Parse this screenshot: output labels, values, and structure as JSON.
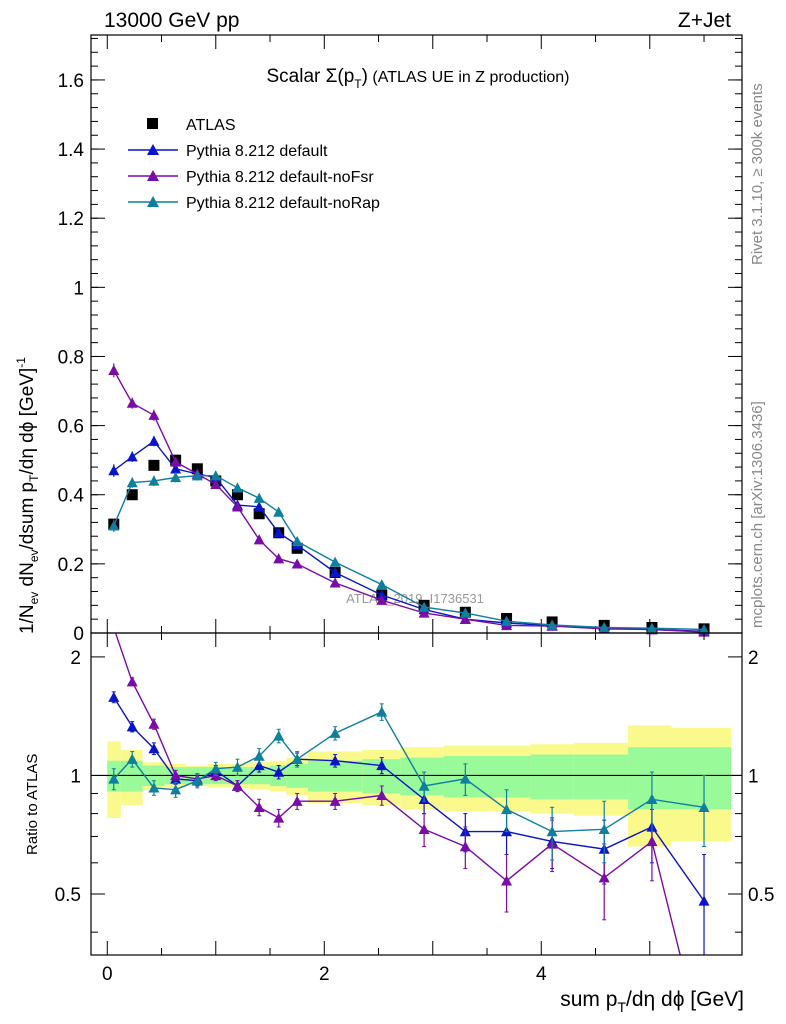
{
  "header": {
    "left": "13000 GeV pp",
    "right": "Z+Jet"
  },
  "side_labels": {
    "rivet": "Rivet 3.1.10, ≥ 300k events",
    "mcplots": "mcplots.cern.ch [arXiv:1306.3436]"
  },
  "watermark": "ATLAS_2019_I1736531",
  "colors": {
    "atlas": "#000000",
    "default": "#0a14c8",
    "noFsr": "#7a0ca8",
    "noRap": "#0f7f9e",
    "band_inner": "#99fa99",
    "band_outer": "#fafa8c"
  },
  "chart_data": [
    {
      "type": "scatter",
      "panel": "main",
      "title_prefix": "Scalar ",
      "title_sigma": "Σ(p",
      "title_sub": "T",
      "title_close": ")",
      "title_suffix": " (ATLAS UE in Z production)",
      "xlabel": "sum p_T/dη dϕ [GeV]",
      "ylabel": "1/N_ev dN_ev/dsum p_T/dη dϕ [GeV]^-1",
      "xlim": [
        -0.15,
        5.85
      ],
      "ylim": [
        0,
        1.73
      ],
      "yticks": [
        "0",
        "0.2",
        "0.4",
        "0.6",
        "0.8",
        "1",
        "1.2",
        "1.4",
        "1.6"
      ],
      "xticks": [
        "0",
        "2",
        "4"
      ],
      "legend": [
        "ATLAS",
        "Pythia 8.212 default",
        "Pythia 8.212 default-noFsr",
        "Pythia 8.212 default-noRap"
      ],
      "bins": [
        [
          0,
          0.125
        ],
        [
          0.125,
          0.325
        ],
        [
          0.325,
          0.525
        ],
        [
          0.525,
          0.725
        ],
        [
          0.725,
          0.925
        ],
        [
          0.925,
          1.1
        ],
        [
          1.1,
          1.3
        ],
        [
          1.3,
          1.5
        ],
        [
          1.5,
          1.65
        ],
        [
          1.65,
          1.85
        ],
        [
          1.85,
          2.35
        ],
        [
          2.35,
          2.7
        ],
        [
          2.7,
          3.1
        ],
        [
          3.1,
          3.5
        ],
        [
          3.5,
          3.9
        ],
        [
          3.9,
          4.3
        ],
        [
          4.3,
          4.8
        ],
        [
          4.8,
          5.2
        ],
        [
          5.2,
          5.75
        ]
      ],
      "x": [
        0.06,
        0.23,
        0.43,
        0.63,
        0.83,
        1.0,
        1.2,
        1.4,
        1.58,
        1.75,
        2.1,
        2.53,
        2.92,
        3.3,
        3.68,
        4.1,
        4.58,
        5.02,
        5.5
      ],
      "series": [
        {
          "name": "ATLAS",
          "key": "atlas",
          "values": [
            0.315,
            0.4,
            0.485,
            0.5,
            0.475,
            0.44,
            0.4,
            0.345,
            0.29,
            0.245,
            0.175,
            0.11,
            0.08,
            0.06,
            0.042,
            0.032,
            0.022,
            0.016,
            0.012
          ],
          "err": [
            0.015,
            0.012,
            0.012,
            0.012,
            0.012,
            0.012,
            0.012,
            0.01,
            0.01,
            0.01,
            0.008,
            0.006,
            0.005,
            0.004,
            0.003,
            0.003,
            0.002,
            0.002,
            0.002
          ]
        },
        {
          "name": "Pythia 8.212 default",
          "key": "default",
          "values": [
            0.47,
            0.51,
            0.555,
            0.475,
            0.46,
            0.45,
            0.37,
            0.365,
            0.29,
            0.255,
            0.175,
            0.11,
            0.068,
            0.04,
            0.029,
            0.021,
            0.014,
            0.01,
            0.005
          ],
          "err": [
            0.018,
            0.015,
            0.015,
            0.014,
            0.014,
            0.014,
            0.012,
            0.012,
            0.011,
            0.01,
            0.008,
            0.006,
            0.005,
            0.004,
            0.003,
            0.003,
            0.002,
            0.002,
            0.002
          ]
        },
        {
          "name": "Pythia 8.212 default-noFsr",
          "key": "noFsr",
          "values": [
            0.76,
            0.665,
            0.63,
            0.495,
            0.46,
            0.43,
            0.365,
            0.27,
            0.215,
            0.2,
            0.145,
            0.095,
            0.058,
            0.04,
            0.022,
            0.02,
            0.012,
            0.01,
            0.003
          ],
          "err": [
            0.02,
            0.016,
            0.016,
            0.014,
            0.014,
            0.013,
            0.012,
            0.01,
            0.009,
            0.008,
            0.007,
            0.005,
            0.004,
            0.004,
            0.003,
            0.003,
            0.002,
            0.002,
            0.002
          ]
        },
        {
          "name": "Pythia 8.212 default-noRap",
          "key": "noRap",
          "values": [
            0.31,
            0.435,
            0.44,
            0.45,
            0.455,
            0.455,
            0.42,
            0.39,
            0.35,
            0.265,
            0.205,
            0.14,
            0.075,
            0.058,
            0.034,
            0.023,
            0.016,
            0.014,
            0.01
          ],
          "err": [
            0.018,
            0.015,
            0.015,
            0.014,
            0.014,
            0.014,
            0.013,
            0.013,
            0.012,
            0.01,
            0.009,
            0.006,
            0.005,
            0.004,
            0.003,
            0.003,
            0.002,
            0.002,
            0.002
          ]
        }
      ]
    },
    {
      "type": "line",
      "panel": "ratio",
      "ylabel": "Ratio to ATLAS",
      "xlabel": "sum p_T/dη dϕ [GeV]",
      "ylim": [
        0.35,
        2.3
      ],
      "yticks": [
        "0.5",
        "1",
        "2"
      ],
      "reference": 1,
      "band_inner": [
        0.09,
        0.09,
        0.06,
        0.05,
        0.05,
        0.05,
        0.05,
        0.05,
        0.06,
        0.07,
        0.09,
        0.1,
        0.11,
        0.12,
        0.12,
        0.13,
        0.13,
        0.18,
        0.18
      ],
      "band_outer": [
        0.22,
        0.16,
        0.08,
        0.07,
        0.06,
        0.07,
        0.07,
        0.08,
        0.09,
        0.11,
        0.15,
        0.16,
        0.18,
        0.19,
        0.19,
        0.2,
        0.21,
        0.34,
        0.32
      ],
      "series": [
        {
          "name": "Pythia 8.212 default",
          "key": "default",
          "values": [
            1.58,
            1.33,
            1.17,
            0.98,
            0.97,
            1.03,
            0.94,
            1.06,
            1.02,
            1.1,
            1.09,
            1.06,
            0.87,
            0.72,
            0.72,
            0.68,
            0.65,
            0.74,
            0.48
          ],
          "err": [
            0.05,
            0.04,
            0.04,
            0.03,
            0.03,
            0.03,
            0.03,
            0.04,
            0.04,
            0.04,
            0.04,
            0.05,
            0.07,
            0.08,
            0.09,
            0.1,
            0.12,
            0.14,
            0.15
          ]
        },
        {
          "name": "Pythia 8.212 default-noFsr",
          "key": "noFsr",
          "values": [
            2.37,
            1.73,
            1.35,
            1.0,
            0.98,
            1.0,
            0.94,
            0.83,
            0.78,
            0.86,
            0.86,
            0.89,
            0.73,
            0.66,
            0.54,
            0.67,
            0.55,
            0.68,
            0.2
          ],
          "err": [
            0.06,
            0.04,
            0.04,
            0.03,
            0.03,
            0.03,
            0.03,
            0.04,
            0.04,
            0.04,
            0.04,
            0.05,
            0.07,
            0.08,
            0.09,
            0.1,
            0.12,
            0.14,
            0.15
          ]
        },
        {
          "name": "Pythia 8.212 default-noRap",
          "key": "noRap",
          "values": [
            0.98,
            1.1,
            0.93,
            0.92,
            0.97,
            1.04,
            1.05,
            1.12,
            1.26,
            1.1,
            1.28,
            1.45,
            0.94,
            0.98,
            0.82,
            0.72,
            0.73,
            0.87,
            0.83
          ],
          "err": [
            0.06,
            0.05,
            0.04,
            0.04,
            0.04,
            0.04,
            0.05,
            0.05,
            0.05,
            0.05,
            0.05,
            0.07,
            0.08,
            0.09,
            0.1,
            0.11,
            0.13,
            0.15,
            0.17
          ]
        }
      ]
    }
  ]
}
